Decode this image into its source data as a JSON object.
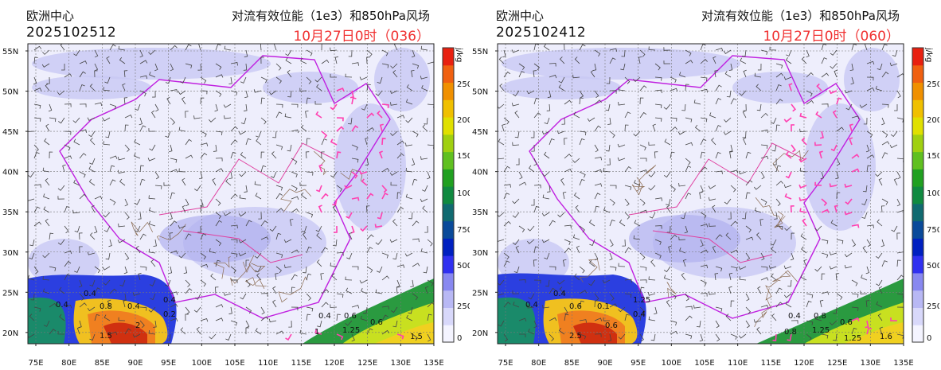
{
  "panels": [
    {
      "center": "欧洲中心",
      "init_time": "2025102512",
      "title": "对流有效位能（1e3）和850hPa风场",
      "valid_time": "10月27日0时（036）"
    },
    {
      "center": "欧洲中心",
      "init_time": "2025102412",
      "title": "对流有效位能（1e3）和850hPa风场",
      "valid_time": "10月27日0时（060）"
    }
  ],
  "lat_ticks": [
    "55N",
    "50N",
    "45N",
    "40N",
    "35N",
    "30N",
    "25N",
    "20N"
  ],
  "lon_ticks": [
    "75E",
    "80E",
    "85E",
    "90E",
    "95E",
    "100E",
    "105E",
    "110E",
    "115E",
    "120E",
    "125E",
    "130E",
    "135E"
  ],
  "colorbar": {
    "unit": "j/kg",
    "labels": [
      "0",
      "250",
      "500",
      "750",
      "1000",
      "1500",
      "2000",
      "2500"
    ]
  },
  "contour_labels": [
    [
      "0.4",
      "0.4",
      "0.8",
      "0.4",
      "0.4",
      "0.2",
      "1.5",
      "2",
      "0.4",
      "0.6",
      "0.6",
      "1.25",
      "1.5",
      "1"
    ],
    [
      "0.4",
      "0.4",
      "0.6",
      "0.1",
      "1.25",
      "0.4",
      "2.5",
      "0.6",
      "0.4",
      "0.8",
      "0.6",
      "1.25",
      "1.6",
      "0.8",
      "1.25"
    ]
  ],
  "colors": {
    "valid": "#f03030",
    "border": "#c020e0",
    "province": "#e040a0",
    "river": "#8a6a50"
  }
}
